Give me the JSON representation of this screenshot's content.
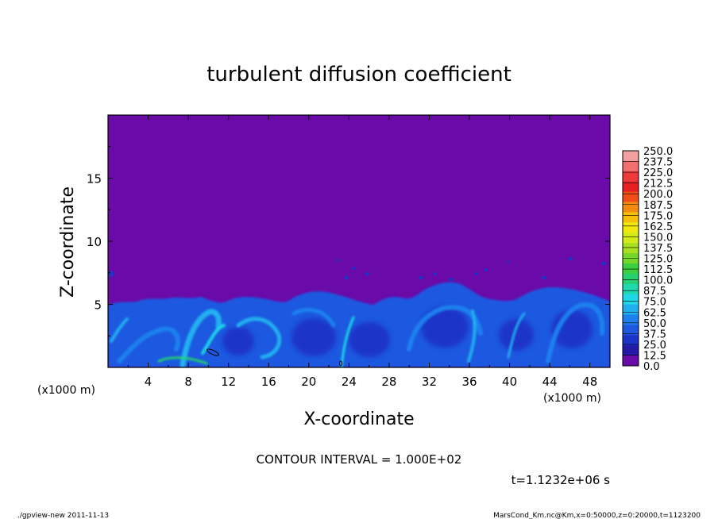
{
  "chart_data": {
    "type": "heatmap",
    "title": "turbulent diffusion coefficient",
    "xlabel": "X-coordinate",
    "ylabel": "Z-coordinate",
    "x_unit": "(x1000 m)",
    "x_unit_right": "(x1000 m)",
    "xlim": [
      0,
      50
    ],
    "ylim": [
      0,
      20
    ],
    "x_ticks": [
      4,
      8,
      12,
      16,
      20,
      24,
      28,
      32,
      36,
      40,
      44,
      48
    ],
    "y_ticks": [
      5,
      10,
      15
    ],
    "colorbar": {
      "levels": [
        "250.0",
        "237.5",
        "225.0",
        "212.5",
        "200.0",
        "187.5",
        "175.0",
        "162.5",
        "150.0",
        "137.5",
        "125.0",
        "112.5",
        "100.0",
        "87.5",
        "75.0",
        "62.5",
        "50.0",
        "37.5",
        "25.0",
        "12.5",
        "0.0"
      ],
      "colors": [
        "#f3a0a0",
        "#f27070",
        "#ee3a3a",
        "#e52020",
        "#f05018",
        "#f58a10",
        "#f5c00a",
        "#f0e810",
        "#d2ea18",
        "#a8e020",
        "#74d828",
        "#3cd040",
        "#24d070",
        "#20d8b0",
        "#1ed8e8",
        "#20b0f0",
        "#1e80ee",
        "#1e58e0",
        "#1c34c8",
        "#2418a8",
        "#6a0aa8"
      ]
    },
    "contour_interval": "CONTOUR INTERVAL = 1.000E+02",
    "time": "t=1.1232e+06 s",
    "description_note": ""
  },
  "footer": {
    "left": "./gpview-new   2011-11-13",
    "right": "MarsCond_Km.nc@Km,x=0:50000,z=0:20000,t=1123200"
  }
}
